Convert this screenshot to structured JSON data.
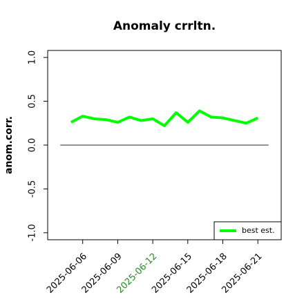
{
  "chart_data": {
    "type": "line",
    "title": "Anomaly crrltn.",
    "ylabel": "anom.corr.",
    "x": [
      "2025-06-05",
      "2025-06-06",
      "2025-06-07",
      "2025-06-08",
      "2025-06-09",
      "2025-06-10",
      "2025-06-11",
      "2025-06-12",
      "2025-06-13",
      "2025-06-14",
      "2025-06-15",
      "2025-06-16",
      "2025-06-17",
      "2025-06-18",
      "2025-06-19",
      "2025-06-20",
      "2025-06-21"
    ],
    "series": [
      {
        "name": "best est.",
        "color": "#00ff00",
        "values": [
          0.26,
          0.33,
          0.3,
          0.29,
          0.26,
          0.32,
          0.28,
          0.3,
          0.22,
          0.37,
          0.26,
          0.39,
          0.32,
          0.31,
          0.28,
          0.25,
          0.31
        ]
      }
    ],
    "reference_line": 0,
    "xlim": [
      "2025-06-03",
      "2025-06-23"
    ],
    "xticks": [
      "2025-06-06",
      "2025-06-09",
      "2025-06-12",
      "2025-06-15",
      "2025-06-18",
      "2025-06-21"
    ],
    "highlight_xtick": "2025-06-12",
    "highlight_color": "#228b22",
    "ylim": [
      -1.08,
      1.08
    ],
    "yticks": [
      {
        "value": -1,
        "label": "-1.0"
      },
      -0.5,
      {
        "value": 0,
        "label": "0.0"
      },
      0.5,
      {
        "value": 1,
        "label": "1.0"
      }
    ],
    "legend": "bottom-right"
  }
}
